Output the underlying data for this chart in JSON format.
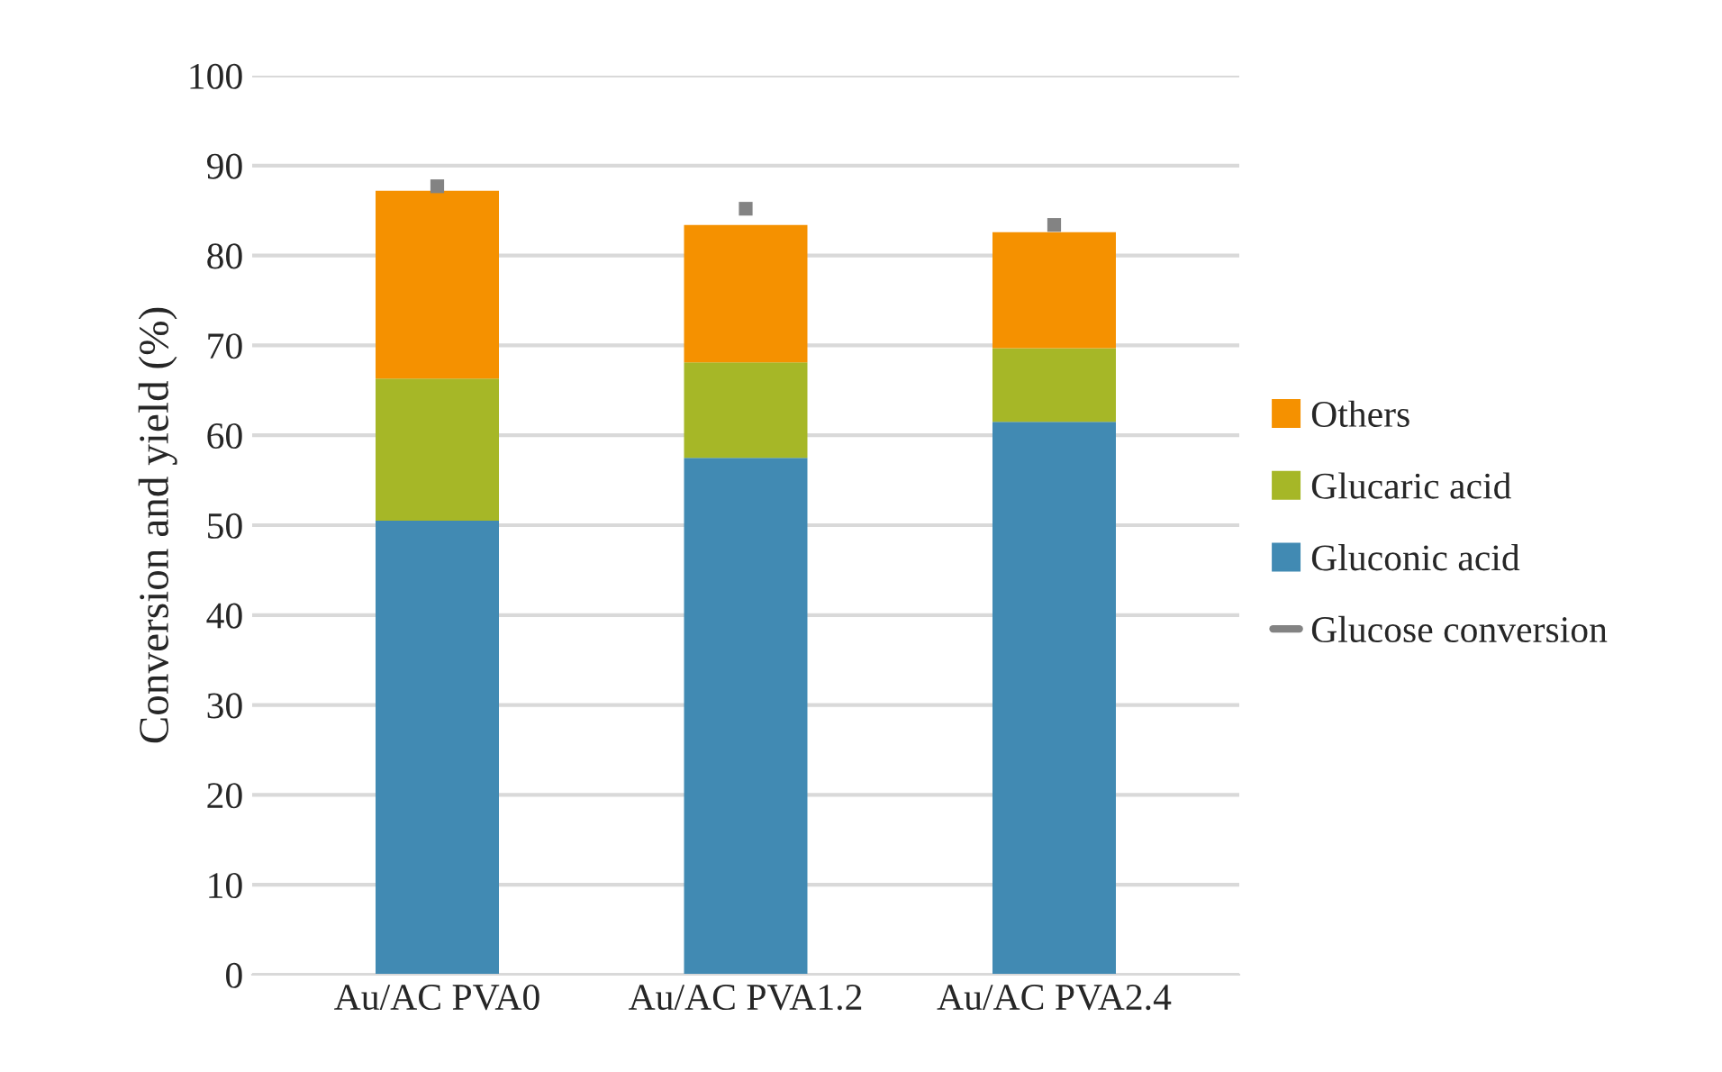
{
  "chart_data": {
    "type": "bar",
    "stacked": true,
    "ylabel": "Conversion and yield (%)",
    "categories": [
      "Au/AC PVA0",
      "Au/AC PVA1.2",
      "Au/AC PVA2.4"
    ],
    "series": [
      {
        "name": "Gluconic acid",
        "color": "#418ab3",
        "values": [
          50.5,
          57.5,
          61.5
        ]
      },
      {
        "name": "Glucaric acid",
        "color": "#a6b727",
        "values": [
          15.8,
          10.6,
          8.2
        ]
      },
      {
        "name": "Others",
        "color": "#f59100",
        "values": [
          20.9,
          15.3,
          12.9
        ]
      },
      {
        "name": "Glucose conversion",
        "color": "#838383",
        "type": "scatter",
        "marker": "square",
        "x": [
          "Au/AC PVA0",
          "Au/AC PVA1.2",
          "Au/AC PVA2.4"
        ],
        "values": [
          87.7,
          85.2,
          83.4
        ]
      }
    ],
    "ylim": [
      0,
      100
    ],
    "yticks": [
      0,
      10,
      20,
      30,
      40,
      50,
      60,
      70,
      80,
      90,
      100
    ],
    "grid": "y",
    "legend": "right"
  }
}
